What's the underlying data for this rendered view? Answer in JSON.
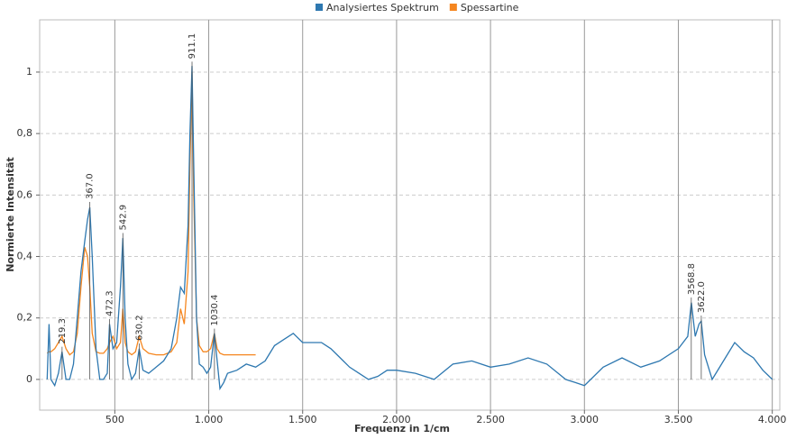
{
  "chart_data": {
    "type": "line",
    "xlabel": "Frequenz in 1/cm",
    "ylabel": "Normierte Intensität",
    "x": [
      140,
      150,
      160,
      180,
      200,
      219,
      240,
      260,
      280,
      300,
      320,
      340,
      355,
      367,
      380,
      400,
      420,
      440,
      460,
      472,
      490,
      510,
      530,
      543,
      555,
      570,
      590,
      610,
      630,
      650,
      680,
      720,
      760,
      800,
      830,
      850,
      870,
      890,
      900,
      911,
      920,
      935,
      950,
      970,
      990,
      1010,
      1030,
      1045,
      1060,
      1080,
      1100,
      1150,
      1200,
      1250,
      1300,
      1350,
      1400,
      1450,
      1500,
      1550,
      1600,
      1650,
      1700,
      1750,
      1800,
      1850,
      1900,
      1950,
      2000,
      2100,
      2200,
      2300,
      2400,
      2500,
      2600,
      2700,
      2800,
      2900,
      2950,
      3000,
      3100,
      3200,
      3300,
      3400,
      3500,
      3550,
      3569,
      3590,
      3610,
      3622,
      3640,
      3680,
      3750,
      3800,
      3850,
      3900,
      3950,
      4000
    ],
    "series": [
      {
        "name": "Analysiertes Spektrum",
        "color": "#2e78b0",
        "values": [
          0,
          0.18,
          0,
          -0.02,
          0.02,
          0.09,
          0,
          0,
          0.05,
          0.2,
          0.35,
          0.45,
          0.52,
          0.56,
          0.4,
          0.1,
          0,
          0,
          0.02,
          0.18,
          0.1,
          0.12,
          0.3,
          0.46,
          0.2,
          0.05,
          0,
          0.02,
          0.1,
          0.03,
          0.02,
          0.04,
          0.06,
          0.1,
          0.2,
          0.3,
          0.28,
          0.5,
          0.8,
          1.02,
          0.7,
          0.2,
          0.05,
          0.04,
          0.02,
          0.04,
          0.15,
          0.06,
          -0.03,
          -0.01,
          0.02,
          0.03,
          0.05,
          0.04,
          0.06,
          0.11,
          0.13,
          0.15,
          0.12,
          0.12,
          0.12,
          0.1,
          0.07,
          0.04,
          0.02,
          0,
          0.01,
          0.03,
          0.03,
          0.02,
          0,
          0.05,
          0.06,
          0.04,
          0.05,
          0.07,
          0.05,
          0,
          -0.01,
          -0.02,
          0.04,
          0.07,
          0.04,
          0.06,
          0.1,
          0.14,
          0.25,
          0.14,
          0.18,
          0.19,
          0.08,
          0,
          0.07,
          0.12,
          0.09,
          0.07,
          0.03,
          0
        ]
      },
      {
        "name": "Spessartine",
        "color": "#f5861f",
        "values": [
          0.085,
          0.09,
          0.09,
          0.1,
          0.12,
          0.14,
          0.1,
          0.08,
          0.09,
          0.15,
          0.3,
          0.43,
          0.4,
          0.3,
          0.15,
          0.09,
          0.085,
          0.085,
          0.1,
          0.12,
          0.14,
          0.1,
          0.12,
          0.23,
          0.12,
          0.09,
          0.08,
          0.09,
          0.14,
          0.1,
          0.085,
          0.08,
          0.08,
          0.09,
          0.12,
          0.23,
          0.18,
          0.35,
          0.7,
          1.0,
          0.6,
          0.2,
          0.11,
          0.09,
          0.09,
          0.1,
          0.15,
          0.1,
          0.085,
          0.08,
          0.08,
          0.08,
          0.08,
          0.08,
          null,
          null,
          null,
          null,
          null,
          null,
          null,
          null,
          null,
          null,
          null,
          null,
          null,
          null,
          null,
          null,
          null,
          null,
          null,
          null,
          null,
          null,
          null,
          null,
          null,
          null,
          null,
          null,
          null,
          null,
          null,
          null,
          null,
          null,
          null,
          null,
          null,
          null,
          null,
          null,
          null,
          null,
          null,
          null
        ]
      }
    ],
    "peaks": [
      {
        "value": 219.3,
        "label": "219.3"
      },
      {
        "value": 367.0,
        "label": "367.0"
      },
      {
        "value": 472.3,
        "label": "472.3"
      },
      {
        "value": 542.9,
        "label": "542.9"
      },
      {
        "value": 630.2,
        "label": "630.2"
      },
      {
        "value": 911.1,
        "label": "911.1"
      },
      {
        "value": 1030.4,
        "label": "1030.4"
      },
      {
        "value": 3568.8,
        "label": "3568.8"
      },
      {
        "value": 3622.0,
        "label": "3622.0"
      }
    ],
    "xlim": [
      100,
      4040
    ],
    "ylim": [
      -0.1,
      1.17
    ],
    "xticks": [
      500,
      {
        "value": 1000,
        "label": "1.000"
      },
      {
        "value": 1500,
        "label": "1.500"
      },
      {
        "value": 2000,
        "label": "2.000"
      },
      {
        "value": 2500,
        "label": "2.500"
      },
      {
        "value": 3000,
        "label": "3.000"
      },
      {
        "value": 3500,
        "label": "3.500"
      },
      {
        "value": 4000,
        "label": "4.000"
      }
    ],
    "yticks": [
      0,
      {
        "value": 0.2,
        "label": "0,2"
      },
      {
        "value": 0.4,
        "label": "0,4"
      },
      {
        "value": 0.6,
        "label": "0,6"
      },
      {
        "value": 0.8,
        "label": "0,8"
      },
      1
    ],
    "grid": true,
    "legend": "top"
  }
}
